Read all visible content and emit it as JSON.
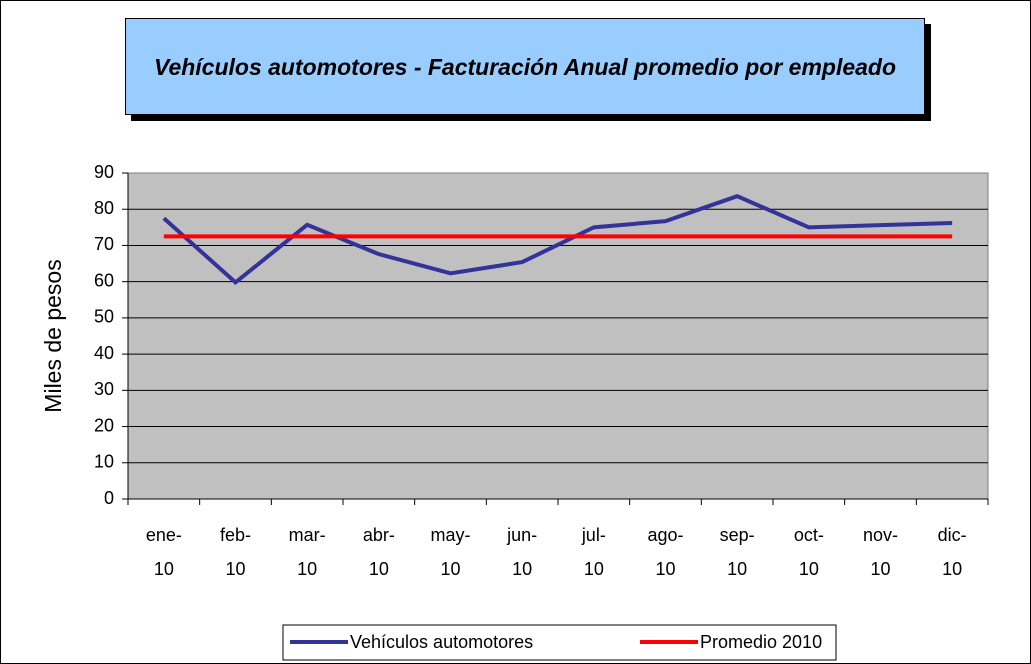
{
  "chart_data": {
    "type": "line",
    "title": "Vehículos automotores - Facturación Anual promedio por empleado",
    "y_label": "Miles de pesos",
    "categories": [
      "ene-10",
      "feb-10",
      "mar-10",
      "abr-10",
      "may-10",
      "jun-10",
      "jul-10",
      "ago-10",
      "sep-10",
      "oct-10",
      "nov-10",
      "dic-10"
    ],
    "series": [
      {
        "name": "Vehículos automotores",
        "color": "#333399",
        "values": [
          77.5,
          59.8,
          75.7,
          67.6,
          62.3,
          65.4,
          75.0,
          76.7,
          83.6,
          75.0,
          75.6,
          76.2
        ]
      },
      {
        "name": "Promedio 2010",
        "color": "#ff0000",
        "values": [
          72.5,
          72.5,
          72.5,
          72.5,
          72.5,
          72.5,
          72.5,
          72.5,
          72.5,
          72.5,
          72.5,
          72.5
        ]
      }
    ],
    "ylim": [
      0,
      90
    ],
    "yticks": [
      0,
      10,
      20,
      30,
      40,
      50,
      60,
      70,
      80,
      90
    ],
    "grid": true,
    "legend": "bottom"
  }
}
